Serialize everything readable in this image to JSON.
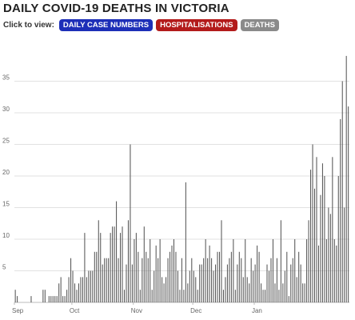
{
  "controls": {
    "label": "Click to view:",
    "buttons": [
      {
        "label": "DAILY CASE NUMBERS",
        "color": "#1d2fb8"
      },
      {
        "label": "HOSPITALISATIONS",
        "color": "#b31b1b"
      },
      {
        "label": "DEATHS",
        "color": "#8a8a8a",
        "active": true
      }
    ]
  },
  "chart_data": {
    "type": "bar",
    "title": "DAILY COVID-19 DEATHS IN VICTORIA",
    "xlabel": "",
    "ylabel": "",
    "ylim": [
      0,
      40
    ],
    "yticks": [
      5,
      10,
      15,
      20,
      25,
      30,
      35
    ],
    "xticks": [
      "Sep",
      "Oct",
      "Nov",
      "Dec",
      "Jan"
    ],
    "grid": true,
    "bar_color": "#555555",
    "series": [
      {
        "values": [
          2,
          1,
          0,
          0,
          0,
          0,
          0,
          0,
          1,
          0,
          0,
          0,
          0,
          0,
          2,
          2,
          0,
          1,
          1,
          1,
          1,
          1,
          3,
          4,
          1,
          1,
          2,
          4,
          7,
          5,
          3,
          2,
          3,
          4,
          4,
          11,
          4,
          5,
          5,
          5,
          8,
          8,
          13,
          11,
          6,
          7,
          7,
          7,
          11,
          12,
          12,
          16,
          7,
          11,
          12,
          2,
          6,
          13,
          25,
          6,
          10,
          11,
          8,
          2,
          7,
          12,
          8,
          7,
          10,
          2,
          5,
          9,
          7,
          10,
          4,
          3,
          4,
          7,
          8,
          9,
          10,
          8,
          5,
          2,
          7,
          2,
          19,
          3,
          5,
          7,
          5,
          4,
          2,
          6,
          6,
          7,
          10,
          7,
          9,
          7,
          5,
          6,
          8,
          8,
          13,
          2,
          4,
          6,
          7,
          8,
          10,
          2,
          6,
          8,
          7,
          4,
          10,
          4,
          3,
          7,
          5,
          6,
          9,
          8,
          3,
          2,
          2,
          6,
          5,
          7,
          10,
          3,
          7,
          2,
          13,
          3,
          5,
          8,
          1,
          6,
          7,
          10,
          4,
          8,
          6,
          3,
          3,
          10,
          13,
          21,
          25,
          18,
          23,
          9,
          17,
          22,
          20,
          10,
          15,
          14,
          23,
          10,
          9,
          20,
          29,
          35,
          15,
          39,
          31
        ]
      }
    ],
    "date_range": [
      "Sep",
      "Jan"
    ]
  }
}
